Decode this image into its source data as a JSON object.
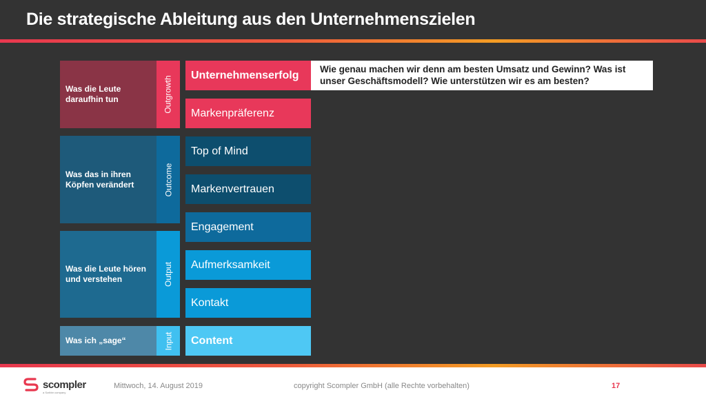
{
  "title": "Die strategische Ableitung aus den Unternehmenszielen",
  "groups": [
    {
      "label": "Was die Leute daraufhin tun",
      "tag": "Outgrowth"
    },
    {
      "label": "Was das in ihren Köpfen verändert",
      "tag": "Outcome"
    },
    {
      "label": "Was die Leute hören und verstehen",
      "tag": "Output"
    },
    {
      "label": "Was ich „sage“",
      "tag": "Input"
    }
  ],
  "steps": [
    "Unternehmenserfolg",
    "Markenpräferenz",
    "Top of Mind",
    "Markenvertrauen",
    "Engagement",
    "Aufmerksamkeit",
    "Kontakt",
    "Content"
  ],
  "question": "Wie genau machen wir denn am besten Umsatz und Gewinn? Was ist unser Geschäftsmodell? Wie unterstützen wir es am besten?",
  "footer": {
    "logo_text": "scompler",
    "logo_sub": "a Scribbr company",
    "date": "Mittwoch, 14. August 2019",
    "copyright": "copyright Scompler GmbH (alle Rechte vorbehalten)",
    "page": "17"
  },
  "colors": {
    "outgrowth_dark": "#8a3446",
    "outgrowth": "#e8385a",
    "outcome_dark": "#1e5a7a",
    "outcome": "#0e6a9c",
    "output_dark": "#1e6a90",
    "output": "#0a9ad8",
    "input_dark": "#4e88a8",
    "input": "#40c0f0"
  }
}
